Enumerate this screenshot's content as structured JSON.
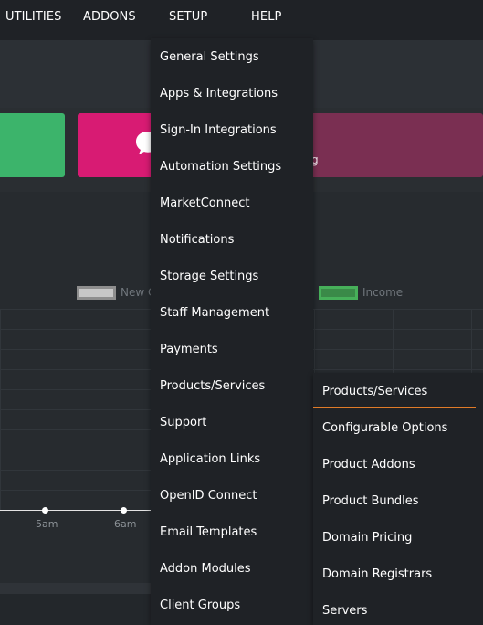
{
  "topnav": {
    "items": [
      "UTILITIES",
      "ADDONS",
      "SETUP",
      "HELP"
    ]
  },
  "stats": {
    "plum_tile_text": "g"
  },
  "chart": {
    "legend": [
      "New C",
      "Income"
    ],
    "x_ticks": [
      "5am",
      "6am"
    ]
  },
  "setup_menu": {
    "items": [
      "General Settings",
      "Apps & Integrations",
      "Sign-In Integrations",
      "Automation Settings",
      "MarketConnect",
      "Notifications",
      "Storage Settings",
      "Staff Management",
      "Payments",
      "Products/Services",
      "Support",
      "Application Links",
      "OpenID Connect",
      "Email Templates",
      "Addon Modules",
      "Client Groups"
    ]
  },
  "products_submenu": {
    "items": [
      "Products/Services",
      "Configurable Options",
      "Product Addons",
      "Product Bundles",
      "Domain Pricing",
      "Domain Registrars",
      "Servers"
    ]
  },
  "colors": {
    "nav_bg": "#1f2226",
    "accent_orange": "#e07b28",
    "tile_green": "#3cb46b",
    "tile_pink": "#d81b73",
    "tile_plum": "#7a2f52",
    "legend_income": "#47b05a"
  },
  "icons": {
    "chat": "chat-bubble-icon"
  }
}
